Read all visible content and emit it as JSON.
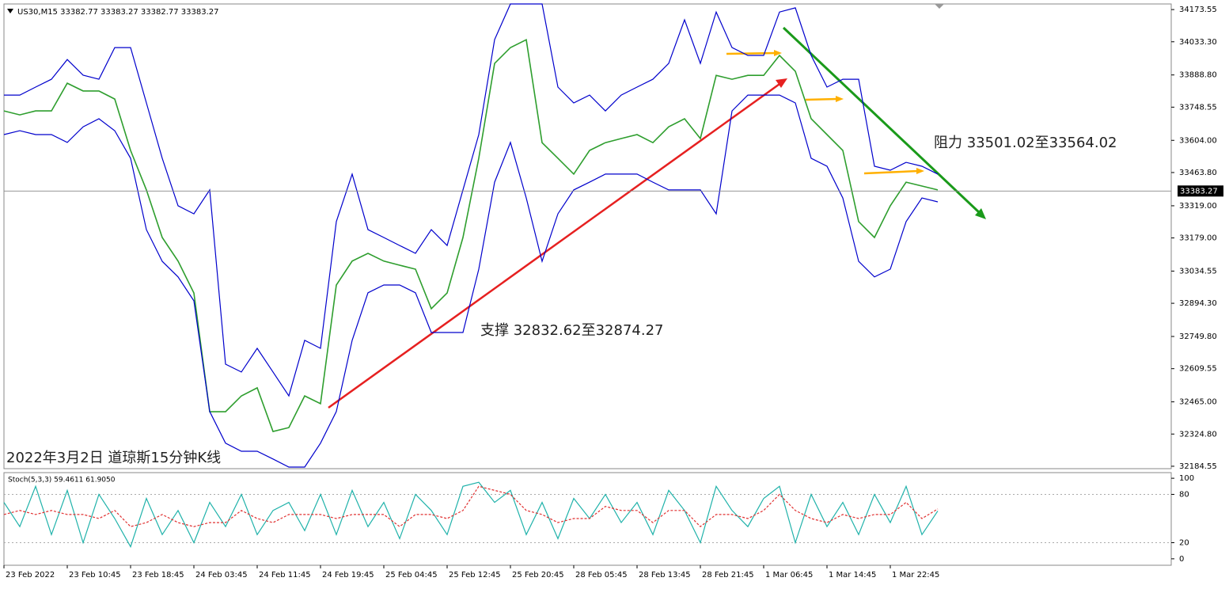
{
  "chart_data": [
    {
      "type": "line",
      "title": "2022年3月2日 道琼斯15分钟K线",
      "symbol_info": "US30,M15  33382.77 33383.27 33382.77 33383.27",
      "annotations": [
        "阻力 33501.02至33564.02",
        "支撑 32832.62至32874.27"
      ],
      "current_price": 33383.27,
      "x": [
        0,
        8,
        16,
        24,
        32,
        40,
        48,
        56,
        64,
        72,
        80,
        88,
        96,
        104,
        112,
        120,
        128,
        136,
        144,
        152,
        160,
        168,
        176,
        184,
        192,
        200,
        208,
        216,
        224,
        232,
        240,
        248,
        256,
        264,
        272,
        280,
        288,
        296,
        304,
        312,
        320,
        328,
        336,
        344,
        352,
        360,
        368,
        376,
        384,
        392,
        400,
        408,
        416,
        424,
        432,
        440,
        448,
        456,
        464,
        472
      ],
      "xlim": [
        0,
        590
      ],
      "ylim": [
        32174,
        34198
      ],
      "yticks": [
        34173.55,
        {
          "value": 34033.3,
          "label": "34033.30"
        },
        {
          "value": 33888.8,
          "label": "33888.80"
        },
        33748.55,
        {
          "value": 33604,
          "label": "33604.00"
        },
        {
          "value": 33463.8,
          "label": "33463.80"
        },
        {
          "value": 33319,
          "label": "33319.00"
        },
        {
          "value": 33179,
          "label": "33179.00"
        },
        33034.55,
        {
          "value": 32894.3,
          "label": "32894.30"
        },
        {
          "value": 32749.8,
          "label": "32749.80"
        },
        32609.55,
        {
          "value": 32465,
          "label": "32465.00"
        },
        {
          "value": 32324.8,
          "label": "32324.80"
        },
        32184.55
      ],
      "series": [
        {
          "color": "#2e9e2e",
          "values": [
            33732,
            33715,
            33732,
            33732,
            33853,
            33819,
            33819,
            33784,
            33560,
            33388,
            33181,
            33078,
            32939,
            32422,
            32422,
            32491,
            32526,
            32336,
            32353,
            32491,
            32457,
            32974,
            33078,
            33112,
            33078,
            33060,
            33043,
            32871,
            32939,
            33181,
            33526,
            33939,
            34008,
            34042,
            33594,
            33526,
            33457,
            33560,
            33594,
            33612,
            33629,
            33594,
            33663,
            33698,
            33612,
            33887,
            33870,
            33887,
            33887,
            33974,
            33905,
            33698,
            33629,
            33560,
            33250,
            33181,
            33319,
            33422,
            33405,
            33388
          ]
        },
        {
          "color": "#0000cc",
          "values": [
            33801,
            33801,
            33836,
            33870,
            33956,
            33888,
            33870,
            34008,
            34008,
            33767,
            33526,
            33319,
            33284,
            33388,
            32629,
            32595,
            32698,
            32595,
            32491,
            32733,
            32698,
            33250,
            33457,
            33215,
            33181,
            33146,
            33112,
            33215,
            33146,
            33388,
            33629,
            34043,
            34198,
            34198,
            34198,
            33836,
            33767,
            33801,
            33732,
            33801,
            33836,
            33870,
            33939,
            34129,
            33939,
            34163,
            34008,
            33974,
            33974,
            34163,
            34181,
            33974,
            33836,
            33870,
            33870,
            33491,
            33474,
            33508,
            33491,
            33457
          ]
        },
        {
          "color": "#0000cc",
          "values": [
            33629,
            33646,
            33629,
            33629,
            33595,
            33663,
            33698,
            33646,
            33526,
            33215,
            33077,
            33009,
            32905,
            32423,
            32285,
            32250,
            32250,
            32216,
            32181,
            32181,
            32285,
            32423,
            32733,
            32940,
            32974,
            32974,
            32940,
            32767,
            32767,
            32767,
            33043,
            33422,
            33595,
            33353,
            33077,
            33284,
            33388,
            33422,
            33457,
            33457,
            33457,
            33422,
            33388,
            33388,
            33388,
            33284,
            33732,
            33801,
            33801,
            33801,
            33767,
            33526,
            33491,
            33353,
            33077,
            33009,
            33043,
            33250,
            33353,
            33336
          ]
        }
      ]
    },
    {
      "type": "line",
      "indicator_label": "Stoch(5,3,3) 59.4611 61.9050",
      "x": [
        0,
        8,
        16,
        24,
        32,
        40,
        48,
        56,
        64,
        72,
        80,
        88,
        96,
        104,
        112,
        120,
        128,
        136,
        144,
        152,
        160,
        168,
        176,
        184,
        192,
        200,
        208,
        216,
        224,
        232,
        240,
        248,
        256,
        264,
        272,
        280,
        288,
        296,
        304,
        312,
        320,
        328,
        336,
        344,
        352,
        360,
        368,
        376,
        384,
        392,
        400,
        408,
        416,
        424,
        432,
        440,
        448,
        456,
        464,
        472
      ],
      "xlim": [
        0,
        590
      ],
      "xticks": [
        {
          "value": 0,
          "label": "23 Feb 2022"
        },
        {
          "value": 32,
          "label": "23 Feb 10:45"
        },
        {
          "value": 64,
          "label": "23 Feb 18:45"
        },
        {
          "value": 96,
          "label": "24 Feb 03:45"
        },
        {
          "value": 128,
          "label": "24 Feb 11:45"
        },
        {
          "value": 160,
          "label": "24 Feb 19:45"
        },
        {
          "value": 192,
          "label": "25 Feb 04:45"
        },
        {
          "value": 224,
          "label": "25 Feb 12:45"
        },
        {
          "value": 256,
          "label": "25 Feb 20:45"
        },
        {
          "value": 288,
          "label": "28 Feb 05:45"
        },
        {
          "value": 320,
          "label": "28 Feb 13:45"
        },
        {
          "value": 352,
          "label": "28 Feb 21:45"
        },
        {
          "value": 384,
          "label": "1 Mar 06:45"
        },
        {
          "value": 416,
          "label": "1 Mar 14:45"
        },
        {
          "value": 448,
          "label": "1 Mar 22:45"
        }
      ],
      "ylim": [
        -8,
        107
      ],
      "yticks": [
        100,
        80,
        20,
        0
      ],
      "levels": [
        80,
        20
      ],
      "series": [
        {
          "color": "#20b2aa",
          "dashed": false,
          "values": [
            70,
            40,
            90,
            30,
            85,
            20,
            80,
            50,
            15,
            75,
            30,
            60,
            20,
            70,
            40,
            80,
            30,
            60,
            70,
            35,
            80,
            30,
            85,
            40,
            70,
            25,
            80,
            60,
            30,
            90,
            95,
            70,
            85,
            30,
            70,
            25,
            75,
            50,
            80,
            45,
            70,
            30,
            85,
            60,
            20,
            90,
            60,
            40,
            75,
            90,
            20,
            80,
            40,
            70,
            30,
            80,
            45,
            90,
            30,
            59.4611
          ]
        },
        {
          "color": "#e03030",
          "dashed": true,
          "values": [
            55,
            60,
            55,
            60,
            55,
            55,
            50,
            60,
            40,
            45,
            55,
            45,
            40,
            45,
            45,
            60,
            50,
            45,
            55,
            55,
            55,
            50,
            55,
            55,
            55,
            40,
            55,
            55,
            50,
            60,
            90,
            85,
            80,
            60,
            55,
            45,
            50,
            50,
            65,
            60,
            60,
            45,
            60,
            60,
            40,
            55,
            55,
            50,
            60,
            80,
            60,
            50,
            45,
            55,
            50,
            55,
            55,
            70,
            50,
            61.905
          ]
        }
      ]
    }
  ]
}
